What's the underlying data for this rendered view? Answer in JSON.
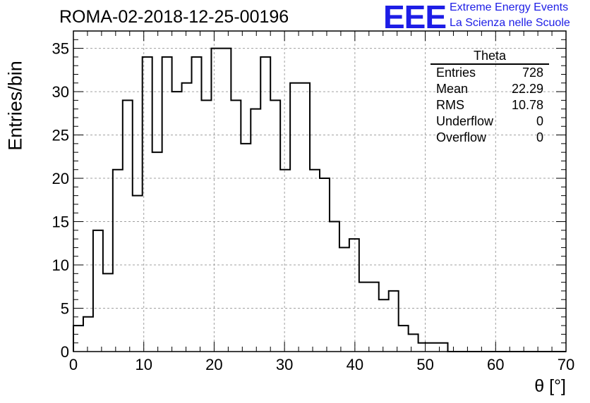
{
  "header": {
    "title": "ROMA-02-2018-12-25-00196",
    "logo_mark": "EEE",
    "logo_line1": "Extreme Energy Events",
    "logo_line2": "La Scienza nelle Scuole"
  },
  "colors": {
    "logo": "#1d1de6",
    "grid": "#a0a0a0",
    "line": "#000000"
  },
  "stats": {
    "title": "Theta",
    "rows": [
      {
        "label": "Entries",
        "value": "728"
      },
      {
        "label": "Mean",
        "value": "22.29"
      },
      {
        "label": "RMS",
        "value": "10.78"
      },
      {
        "label": "Underflow",
        "value": "0"
      },
      {
        "label": "Overflow",
        "value": "0"
      }
    ]
  },
  "chart_data": {
    "type": "histogram",
    "xlabel": "θ [°]",
    "ylabel": "Entries/bin",
    "xlim": [
      0,
      70
    ],
    "ylim": [
      0,
      37
    ],
    "grid": true,
    "bin_width": 1.4,
    "bin_edges_start": 0,
    "values": [
      3,
      4,
      14,
      9,
      21,
      29,
      18,
      34,
      23,
      34,
      30,
      31,
      34,
      29,
      35,
      35,
      29,
      24,
      28,
      34,
      29,
      21,
      31,
      31,
      21,
      20,
      15,
      12,
      13,
      8,
      8,
      6,
      7,
      3,
      2,
      1,
      1,
      1,
      0,
      0,
      0,
      0,
      0,
      0,
      0,
      0,
      0,
      0,
      0,
      0
    ],
    "x_ticks": [
      "0",
      "10",
      "20",
      "30",
      "40",
      "50",
      "60",
      "70"
    ],
    "y_ticks": [
      "0",
      "5",
      "10",
      "15",
      "20",
      "25",
      "30",
      "35"
    ]
  }
}
